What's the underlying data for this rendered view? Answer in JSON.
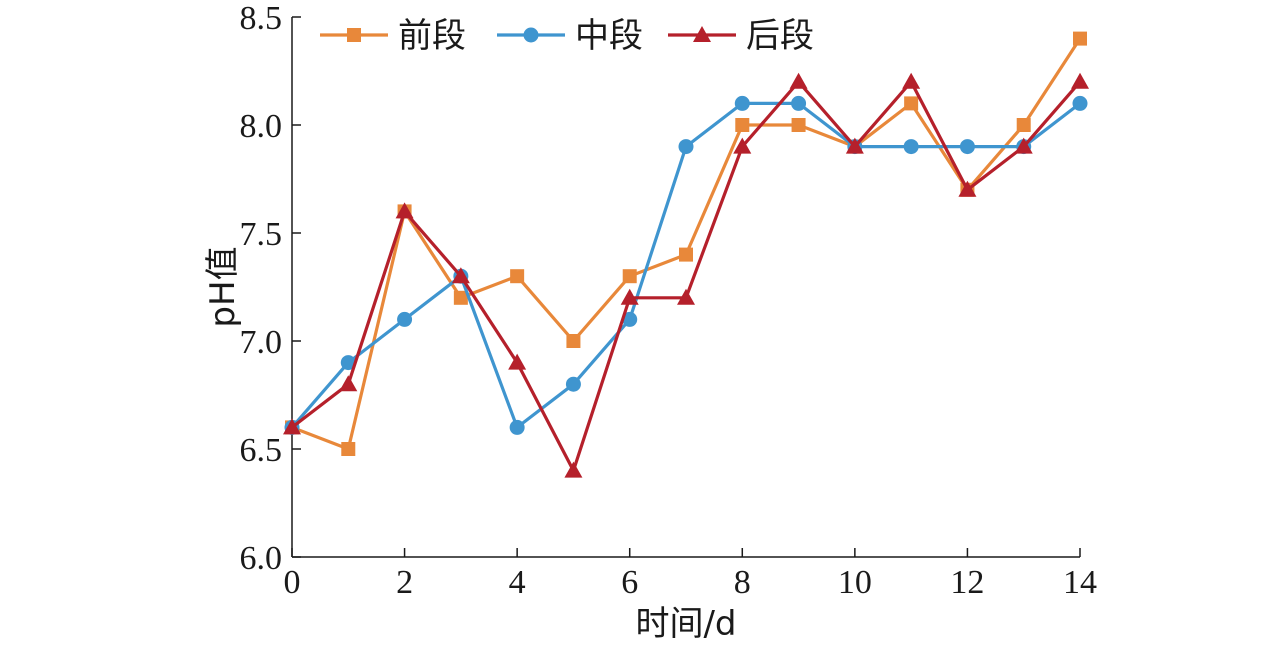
{
  "chart_data": {
    "type": "line",
    "x": [
      0,
      1,
      2,
      3,
      4,
      5,
      6,
      7,
      8,
      9,
      10,
      11,
      12,
      13,
      14
    ],
    "series": [
      {
        "name": "前段",
        "color": "#e8883a",
        "marker": "square",
        "values": [
          6.6,
          6.5,
          7.6,
          7.2,
          7.3,
          7.0,
          7.3,
          7.4,
          8.0,
          8.0,
          7.9,
          8.1,
          7.7,
          8.0,
          8.4
        ]
      },
      {
        "name": "中段",
        "color": "#3f95cf",
        "marker": "circle",
        "values": [
          6.6,
          6.9,
          7.1,
          7.3,
          6.6,
          6.8,
          7.1,
          7.9,
          8.1,
          8.1,
          7.9,
          7.9,
          7.9,
          7.9,
          8.1
        ]
      },
      {
        "name": "后段",
        "color": "#b5202b",
        "marker": "triangle",
        "values": [
          6.6,
          6.8,
          7.6,
          7.3,
          6.9,
          6.4,
          7.2,
          7.2,
          7.9,
          8.2,
          7.9,
          8.2,
          7.7,
          7.9,
          8.2
        ]
      }
    ],
    "xlabel": "时间/d",
    "ylabel": "pH值",
    "xlim": [
      0,
      14
    ],
    "ylim": [
      6.0,
      8.5
    ],
    "xticks": [
      0,
      2,
      4,
      6,
      8,
      10,
      12,
      14
    ],
    "xtick_labels": [
      "0",
      "2",
      "4",
      "6",
      "8",
      "10",
      "12",
      "14"
    ],
    "yticks": [
      6.0,
      6.5,
      7.0,
      7.5,
      8.0,
      8.5
    ],
    "ytick_labels": [
      "6.0",
      "6.5",
      "7.0",
      "7.5",
      "8.0",
      "8.5"
    ],
    "grid": false,
    "legend_position": "top-left"
  }
}
